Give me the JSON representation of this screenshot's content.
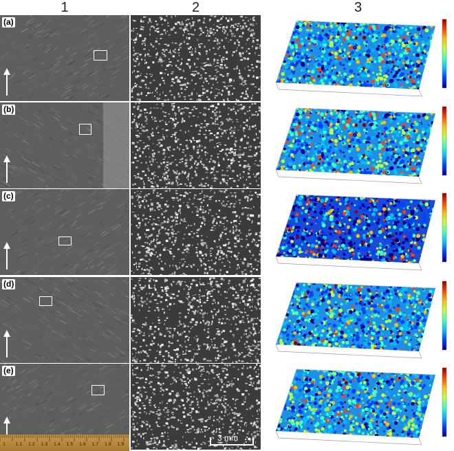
{
  "columns": [
    "1",
    "2",
    "3"
  ],
  "rows": [
    {
      "label": "(a)"
    },
    {
      "label": "(b)"
    },
    {
      "label": "(c)"
    },
    {
      "label": "(d)"
    },
    {
      "label": "(e)"
    }
  ],
  "scale_bar": "3 mm",
  "ruler_marks": [
    "1",
    "1.1",
    "1.2",
    "1.3",
    "1.4",
    "1.5",
    "1.6",
    "1.7",
    "1.8",
    "1.9"
  ],
  "colormap": [
    "#00008f",
    "#0040ff",
    "#00bfff",
    "#40ffbf",
    "#bfff40",
    "#ffbf00",
    "#ff4000",
    "#8f0000"
  ]
}
